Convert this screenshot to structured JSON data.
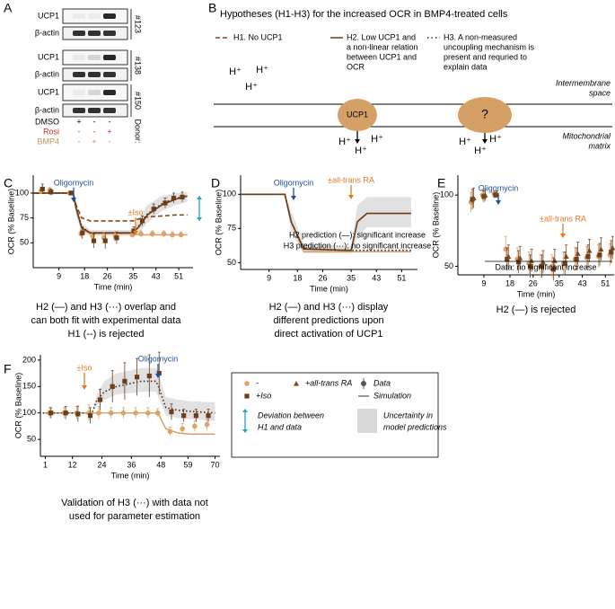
{
  "panel_labels": [
    "A",
    "B",
    "C",
    "D",
    "E",
    "F"
  ],
  "blot": {
    "rows": [
      "UCP1",
      "β-actin",
      "UCP1",
      "β-actin",
      "UCP1",
      "β-actin"
    ],
    "donors": [
      "#123",
      "#138",
      "#150"
    ],
    "donor_label": "Donor:",
    "treatments": [
      {
        "name": "DMSO",
        "color": "#000000",
        "signs": [
          "+",
          "-",
          "-"
        ]
      },
      {
        "name": "Rosi",
        "color": "#d62728",
        "signs": [
          "-",
          "-",
          "+"
        ]
      },
      {
        "name": "BMP4",
        "color": "#b8975a",
        "signs": [
          "-",
          "+",
          "-"
        ]
      }
    ]
  },
  "diagram": {
    "title": "Hypotheses (H1-H3) for the increased OCR in BMP4-treated cells",
    "hypotheses": [
      {
        "lines": [
          "H1. No UCP1"
        ],
        "dash": "5,3"
      },
      {
        "lines": [
          "H2. Low UCP1 and",
          "a non-linear relation",
          "between UCP1 and",
          "OCR"
        ],
        "dash": ""
      },
      {
        "lines": [
          "H3.  A  non-measured",
          "uncoupling mechanism is",
          "present and requried to",
          "explain data"
        ],
        "dash": "1.5,3"
      }
    ],
    "protons": [
      "H⁺",
      "H⁺",
      "H⁺",
      "H⁺",
      "H⁺",
      "H⁺",
      "H⁺",
      "H⁺",
      "H⁺"
    ],
    "ucp1": "UCP1",
    "unknown": "?",
    "intermembrane": [
      "Intermembrane",
      "space"
    ],
    "matrix": [
      "Mitochondrial",
      "matrix"
    ]
  },
  "chart_data": [
    {
      "type": "line",
      "ylabel": "OCR (% Baseline)",
      "xlabel": "Time (min)",
      "xlim": [
        0,
        56
      ],
      "ylim": [
        25,
        118
      ],
      "xticks": [
        9,
        18,
        26,
        35,
        43,
        51
      ],
      "yticks": [
        50,
        75,
        100
      ],
      "annotations": [
        {
          "text": "Oligomycin",
          "color": "#1f4e9c"
        },
        {
          "text": "±Iso",
          "color": "#e07b22"
        }
      ],
      "bands": [
        {
          "x": [
            0,
            14,
            15,
            17,
            20,
            35,
            37,
            40,
            45,
            50,
            54
          ],
          "lower": [
            100,
            100,
            78,
            60,
            57,
            57,
            60,
            70,
            82,
            88,
            91
          ],
          "upper": [
            100,
            100,
            92,
            70,
            63,
            63,
            74,
            88,
            97,
            100,
            101
          ]
        }
      ],
      "models": [
        {
          "x": [
            0,
            14,
            15,
            17,
            20,
            35,
            37,
            40,
            45,
            50,
            54
          ],
          "values": [
            100,
            100,
            85,
            64,
            59,
            59,
            58,
            58,
            58,
            58,
            58
          ],
          "color": "#d9a36b",
          "dash": ""
        },
        {
          "x": [
            0,
            14,
            15,
            17,
            20,
            35,
            37,
            40,
            45,
            50,
            54
          ],
          "values": [
            100,
            100,
            88,
            75,
            72,
            72,
            74,
            76,
            77,
            78,
            78
          ],
          "color": "#8b4513",
          "dash": "5,3"
        },
        {
          "x": [
            0,
            14,
            15,
            17,
            20,
            35,
            37,
            40,
            45,
            50,
            54
          ],
          "values": [
            100,
            100,
            86,
            66,
            60,
            60,
            67,
            79,
            89,
            95,
            97
          ],
          "color": "#3d2b1f",
          "dash": "1.5,2.5"
        },
        {
          "x": [
            0,
            14,
            15,
            17,
            20,
            35,
            37,
            40,
            45,
            50,
            54
          ],
          "values": [
            100,
            100,
            85,
            65,
            60,
            60,
            66,
            78,
            88,
            94,
            97
          ],
          "color": "#6b3d1a",
          "dash": ""
        }
      ],
      "data": [
        {
          "marker": "circle",
          "color": "#d9a36b",
          "x": [
            3,
            6,
            13,
            17,
            21,
            25,
            29,
            35,
            38,
            42,
            46,
            49,
            52
          ],
          "values": [
            102,
            103,
            100,
            59,
            57,
            55,
            56,
            58,
            59,
            59,
            59,
            58,
            58
          ],
          "errors": [
            3,
            3,
            2,
            4,
            4,
            5,
            4,
            3,
            3,
            3,
            3,
            3,
            3
          ]
        },
        {
          "marker": "square",
          "color": "#6b3d1a",
          "x": [
            3,
            6,
            13,
            17,
            21,
            25,
            29,
            35,
            38,
            42,
            46,
            49,
            52
          ],
          "values": [
            104,
            101,
            100,
            60,
            52,
            52,
            55,
            62,
            72,
            84,
            90,
            95,
            96
          ],
          "errors": [
            5,
            3,
            2,
            6,
            7,
            8,
            6,
            4,
            5,
            5,
            5,
            5,
            5
          ]
        }
      ],
      "caption": [
        "H2 (—) and H3 (···) overlap and",
        "can both fit with experimental data",
        "H1 (--) is rejected"
      ]
    },
    {
      "type": "line",
      "ylabel": "OCR (% Baseline)",
      "xlabel": "Time (min)",
      "xlim": [
        0,
        56
      ],
      "ylim": [
        45,
        114
      ],
      "xticks": [
        9,
        18,
        26,
        35,
        43,
        51
      ],
      "yticks": [
        50,
        75,
        100
      ],
      "annotations": [
        {
          "text": "Oligomycin",
          "color": "#1f4e9c"
        },
        {
          "text": "±all-trans RA",
          "color": "#e07b22"
        },
        {
          "text": "H2 prediction (—): significant increase",
          "color": "#000000"
        },
        {
          "text": "H3 prediction (···): no significant increase",
          "color": "#000000"
        }
      ],
      "bands": [
        {
          "x": [
            0,
            14,
            16,
            20,
            34,
            35,
            37,
            40,
            54
          ],
          "lower": [
            100,
            100,
            72,
            57,
            57,
            57,
            68,
            76,
            76
          ],
          "upper": [
            100,
            100,
            88,
            64,
            62,
            62,
            92,
            98,
            98
          ]
        }
      ],
      "models": [
        {
          "x": [
            0,
            14,
            16,
            20,
            34,
            35,
            37,
            40,
            54
          ],
          "values": [
            100,
            100,
            80,
            58,
            58,
            58,
            58,
            58,
            58
          ],
          "color": "#d9a36b",
          "dash": ""
        },
        {
          "x": [
            0,
            14,
            16,
            20,
            34,
            35,
            37,
            40,
            54
          ],
          "values": [
            100,
            100,
            80,
            60,
            59,
            59,
            59,
            59,
            59
          ],
          "color": "#3d2b1f",
          "dash": "1.5,2.5"
        },
        {
          "x": [
            0,
            14,
            16,
            20,
            34,
            35,
            37,
            40,
            54
          ],
          "values": [
            100,
            100,
            80,
            60,
            59,
            59,
            80,
            86,
            86
          ],
          "color": "#6b3d1a",
          "dash": ""
        }
      ],
      "data": [],
      "caption": [
        "H2 (—) and H3 (···) display",
        "different predictions upon",
        "direct activation of UCP1"
      ]
    },
    {
      "type": "line",
      "ylabel": "OCR (% Baseline)",
      "xlabel": "Time (min)",
      "xlim": [
        0,
        54
      ],
      "ylim": [
        44,
        114
      ],
      "xticks": [
        9,
        18,
        26,
        35,
        43,
        51
      ],
      "yticks": [
        50,
        100
      ],
      "annotations": [
        {
          "text": "Oligomycin",
          "color": "#1f4e9c"
        },
        {
          "text": "±all-trans RA",
          "color": "#e07b22"
        },
        {
          "text": "Data: no significant increase",
          "color": "#000000"
        }
      ],
      "bands": [],
      "models": [],
      "data": [
        {
          "marker": "circle",
          "color": "#d9a36b",
          "x": [
            5,
            9,
            13,
            17,
            21,
            25,
            29,
            33,
            37,
            41,
            45,
            49,
            53
          ],
          "values": [
            95,
            100,
            101,
            62,
            55,
            52,
            50,
            50,
            52,
            55,
            56,
            57,
            58
          ],
          "errors": [
            7,
            4,
            2,
            9,
            8,
            8,
            8,
            8,
            8,
            8,
            8,
            8,
            8
          ]
        },
        {
          "marker": "square",
          "color": "#6b3d1a",
          "x": [
            5,
            9,
            13,
            17,
            21,
            25,
            29,
            33,
            37,
            41,
            45,
            49,
            53
          ],
          "values": [
            97,
            99,
            100,
            55,
            53,
            50,
            50,
            48,
            52,
            55,
            57,
            58,
            60
          ],
          "errors": [
            7,
            4,
            2,
            8,
            8,
            8,
            8,
            8,
            8,
            8,
            8,
            8,
            8
          ]
        },
        {
          "marker": "triangle",
          "color": "#7a4a1e",
          "x": [
            5,
            9,
            13,
            17,
            21,
            25,
            29,
            33,
            37,
            41,
            45,
            49,
            53
          ],
          "values": [
            98,
            100,
            101,
            57,
            56,
            54,
            53,
            54,
            57,
            59,
            61,
            62,
            63
          ],
          "errors": [
            7,
            4,
            2,
            8,
            8,
            8,
            8,
            8,
            8,
            8,
            8,
            8,
            8
          ]
        }
      ],
      "caption": [
        "H2 (—) is rejected"
      ]
    },
    {
      "type": "line",
      "ylabel": "OCR (% Baseline)",
      "xlabel": "Time (min)",
      "xlim": [
        -1,
        72
      ],
      "ylim": [
        18,
        210
      ],
      "xticks": [
        1,
        12,
        24,
        36,
        48,
        59,
        70
      ],
      "yticks": [
        50,
        100,
        150,
        200
      ],
      "annotations": [
        {
          "text": "±Iso",
          "color": "#e07b22"
        },
        {
          "text": "Oligomycin",
          "color": "#1f4e9c"
        }
      ],
      "bands": [
        {
          "x": [
            0,
            20,
            22,
            25,
            30,
            40,
            46,
            47,
            50,
            55,
            60,
            70
          ],
          "lower": [
            100,
            100,
            115,
            125,
            135,
            140,
            140,
            130,
            95,
            90,
            88,
            85
          ],
          "upper": [
            100,
            100,
            135,
            160,
            175,
            185,
            185,
            175,
            130,
            125,
            122,
            120
          ]
        }
      ],
      "models": [
        {
          "x": [
            0,
            20,
            22,
            25,
            30,
            40,
            46,
            47,
            50,
            55,
            60,
            70
          ],
          "values": [
            100,
            100,
            100,
            100,
            100,
            100,
            100,
            98,
            70,
            62,
            60,
            60
          ],
          "color": "#d9a36b",
          "dash": ""
        },
        {
          "x": [
            0,
            20,
            22,
            25,
            30,
            40,
            46,
            47,
            50,
            55,
            60,
            70
          ],
          "values": [
            100,
            100,
            125,
            140,
            150,
            160,
            160,
            150,
            110,
            105,
            103,
            100
          ],
          "color": "#3d2b1f",
          "dash": "1.5,2.5"
        }
      ],
      "data": [
        {
          "marker": "circle",
          "color": "#d9a36b",
          "x": [
            3,
            9,
            14,
            19,
            23,
            28,
            33,
            38,
            43,
            47,
            52,
            57,
            62,
            67
          ],
          "values": [
            100,
            100,
            100,
            100,
            100,
            100,
            100,
            100,
            100,
            100,
            65,
            70,
            75,
            78
          ],
          "errors": [
            10,
            10,
            12,
            15,
            12,
            10,
            10,
            10,
            10,
            8,
            8,
            10,
            10,
            10
          ]
        },
        {
          "marker": "square",
          "color": "#6b3d1a",
          "x": [
            3,
            9,
            14,
            19,
            23,
            28,
            33,
            38,
            43,
            47,
            52,
            57,
            62,
            67
          ],
          "values": [
            100,
            100,
            98,
            95,
            125,
            150,
            160,
            168,
            170,
            175,
            102,
            95,
            95,
            95
          ],
          "errors": [
            10,
            12,
            15,
            15,
            20,
            30,
            35,
            35,
            40,
            40,
            15,
            12,
            12,
            12
          ]
        }
      ],
      "caption": [
        "Validation of H3 (···) with data not",
        "used for parameter estimation"
      ]
    }
  ],
  "legend": {
    "entries": [
      {
        "label": "-",
        "marker": "circle",
        "color": "#d9a36b"
      },
      {
        "label": "+Iso",
        "marker": "square",
        "color": "#6b3d1a"
      },
      {
        "label": "+all-trans RA",
        "marker": "triangle",
        "color": "#7a4a1e"
      }
    ],
    "data_label": "Data",
    "simulation_label": "Simulation",
    "deviation_label": [
      "Deviation between",
      "H1 and data"
    ],
    "uncertainty_label": [
      "Uncertainty in",
      "model predictions"
    ]
  }
}
